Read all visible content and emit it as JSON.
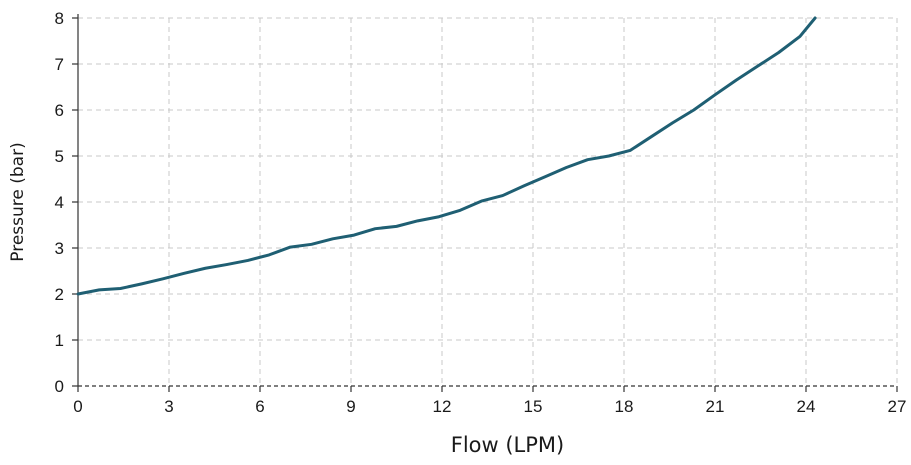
{
  "chart_data": {
    "type": "line",
    "title": "",
    "xlabel": "Flow (LPM)",
    "ylabel": "Pressure (bar)",
    "xlim": [
      0,
      27
    ],
    "ylim": [
      0,
      8
    ],
    "x_ticks": [
      0,
      3,
      6,
      9,
      12,
      15,
      18,
      21,
      24,
      27
    ],
    "y_ticks": [
      0,
      1,
      2,
      3,
      4,
      5,
      6,
      7,
      8
    ],
    "grid": true,
    "legend": "none",
    "series": [
      {
        "color": "#1f5f73",
        "x": [
          0,
          0.7,
          1.4,
          2.1,
          2.8,
          3.5,
          4.2,
          4.9,
          5.6,
          6.3,
          7.0,
          7.7,
          8.4,
          9.1,
          9.8,
          10.5,
          11.2,
          11.9,
          12.6,
          13.3,
          14.0,
          14.7,
          15.4,
          16.1,
          16.8,
          17.5,
          18.2,
          18.9,
          19.6,
          20.3,
          21.0,
          21.7,
          22.4,
          23.1,
          23.8,
          24.3
        ],
        "y": [
          2.0,
          2.09,
          2.12,
          2.22,
          2.33,
          2.45,
          2.56,
          2.64,
          2.73,
          2.85,
          3.02,
          3.08,
          3.2,
          3.28,
          3.42,
          3.47,
          3.59,
          3.68,
          3.82,
          4.02,
          4.14,
          4.35,
          4.55,
          4.75,
          4.92,
          5.0,
          5.12,
          5.42,
          5.72,
          6.0,
          6.33,
          6.65,
          6.95,
          7.25,
          7.6,
          8.0
        ]
      }
    ]
  }
}
